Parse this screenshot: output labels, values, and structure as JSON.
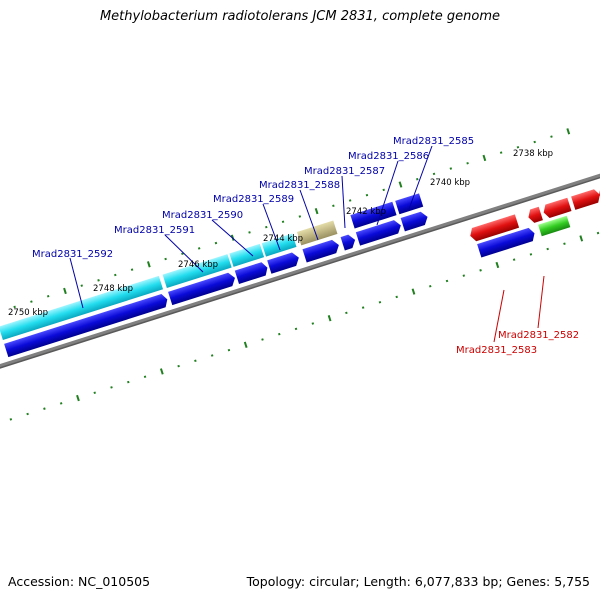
{
  "title": "Methylobacterium radiotolerans JCM 2831, complete genome",
  "footer": {
    "accession": "Accession: NC_010505",
    "topology": "Topology: circular; Length: 6,077,833 bp; Genes: 5,755"
  },
  "colors": {
    "outer_gene": "#22ddee",
    "inner_gene": "#0a0ad0",
    "pseudo_gene": "#b8b070",
    "reverse_gene": "#e01010",
    "rna_gene": "#33cc22",
    "tick": "#208020",
    "backbone": "#808080",
    "highlight_label": "#0000aa",
    "red_label": "#cc0000"
  },
  "kbp_labels": [
    "2738 kbp",
    "2740 kbp",
    "2742 kbp",
    "2744 kbp",
    "2746 kbp",
    "2748 kbp",
    "2750 kbp"
  ],
  "gene_labels": [
    {
      "text": "Mrad2831_2585",
      "color": "blue"
    },
    {
      "text": "Mrad2831_2586",
      "color": "blue"
    },
    {
      "text": "Mrad2831_2587",
      "color": "blue"
    },
    {
      "text": "Mrad2831_2588",
      "color": "blue"
    },
    {
      "text": "Mrad2831_2589",
      "color": "blue"
    },
    {
      "text": "Mrad2831_2590",
      "color": "blue"
    },
    {
      "text": "Mrad2831_2591",
      "color": "blue"
    },
    {
      "text": "Mrad2831_2592",
      "color": "blue"
    },
    {
      "text": "Mrad2831_2582",
      "color": "red"
    },
    {
      "text": "Mrad2831_2583",
      "color": "red"
    }
  ]
}
